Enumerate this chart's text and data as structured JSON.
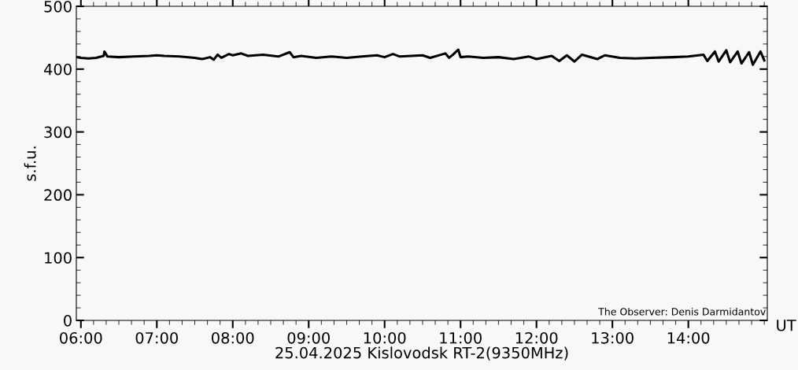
{
  "chart_data": {
    "type": "line",
    "xlabel": "25.04.2025 Kislovodsk RT-2(9350MHz)",
    "ylabel": "s.f.u.",
    "annotations": [
      "The Observer: Denis Darmidantov",
      "UT"
    ],
    "xlim": [
      5.94,
      15.04
    ],
    "xticks": [
      {
        "value": 6,
        "label": "06:00"
      },
      {
        "value": 7,
        "label": "07:00"
      },
      {
        "value": 8,
        "label": "08:00"
      },
      {
        "value": 9,
        "label": "09:00"
      },
      {
        "value": 10,
        "label": "10:00"
      },
      {
        "value": 11,
        "label": "11:00"
      },
      {
        "value": 12,
        "label": "12:00"
      },
      {
        "value": 13,
        "label": "13:00"
      },
      {
        "value": 14,
        "label": "14:00"
      }
    ],
    "ylim": [
      0,
      500
    ],
    "yticks": [
      0,
      100,
      200,
      300,
      400,
      500
    ],
    "grid": false,
    "legend": false,
    "series": [
      {
        "color": "#000000",
        "x": [
          5.95,
          6.0,
          6.1,
          6.2,
          6.3,
          6.31,
          6.35,
          6.5,
          6.7,
          6.9,
          7.0,
          7.1,
          7.3,
          7.5,
          7.6,
          7.7,
          7.75,
          7.8,
          7.85,
          7.95,
          8.0,
          8.11,
          8.2,
          8.4,
          8.6,
          8.75,
          8.8,
          8.9,
          9.1,
          9.3,
          9.5,
          9.7,
          9.9,
          10.0,
          10.11,
          10.2,
          10.5,
          10.6,
          10.8,
          10.85,
          10.9,
          10.97,
          11.0,
          11.1,
          11.3,
          11.5,
          11.7,
          11.9,
          12.0,
          12.2,
          12.3,
          12.4,
          12.5,
          12.6,
          12.8,
          12.9,
          13.1,
          13.3,
          13.5,
          13.8,
          14.0,
          14.2,
          14.25,
          14.35,
          14.4,
          14.5,
          14.55,
          14.65,
          14.7,
          14.8,
          14.85,
          14.95,
          15.0
        ],
        "values": [
          419,
          418,
          417,
          418,
          421,
          428,
          420,
          419,
          420,
          421,
          422,
          421,
          420,
          418,
          416,
          419,
          415,
          423,
          418,
          424,
          422,
          425,
          421,
          423,
          420,
          427,
          419,
          421,
          418,
          420,
          418,
          420,
          422,
          419,
          424,
          420,
          422,
          418,
          425,
          418,
          423,
          431,
          419,
          420,
          418,
          419,
          416,
          420,
          416,
          421,
          413,
          422,
          412,
          423,
          416,
          422,
          418,
          417,
          418,
          419,
          420,
          423,
          413,
          428,
          412,
          430,
          411,
          428,
          409,
          427,
          407,
          428,
          414
        ]
      }
    ]
  }
}
